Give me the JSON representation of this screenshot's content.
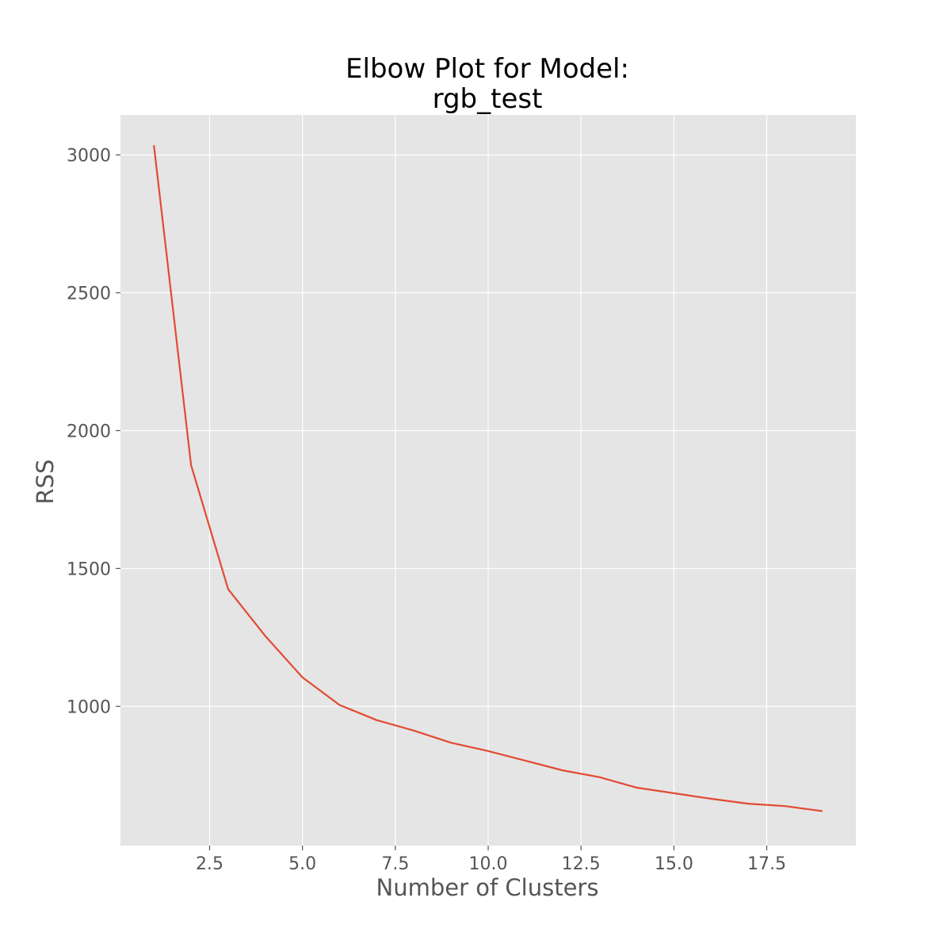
{
  "chart_data": {
    "type": "line",
    "title": "Elbow Plot for Model:\nrgb_test",
    "title_lines": [
      "Elbow Plot for Model:",
      "rgb_test"
    ],
    "xlabel": "Number of Clusters",
    "ylabel": "RSS",
    "xlim": [
      0.1,
      19.9
    ],
    "ylim": [
      495,
      3145
    ],
    "xticks": [
      2.5,
      5.0,
      7.5,
      10.0,
      12.5,
      15.0,
      17.5
    ],
    "xtick_labels": [
      "2.5",
      "5.0",
      "7.5",
      "10.0",
      "12.5",
      "15.0",
      "17.5"
    ],
    "yticks": [
      1000,
      1500,
      2000,
      2500,
      3000
    ],
    "ytick_labels": [
      "1000",
      "1500",
      "2000",
      "2500",
      "3000"
    ],
    "grid": true,
    "background_color": "#e5e5e5",
    "grid_color": "#ffffff",
    "series": [
      {
        "color": "#e24a33",
        "x": [
          1,
          2,
          3,
          4,
          5,
          6,
          7,
          8,
          9,
          10,
          11,
          12,
          13,
          14,
          15,
          16,
          17,
          18,
          19
        ],
        "y": [
          3035,
          1875,
          1425,
          1255,
          1105,
          1005,
          950,
          912,
          868,
          838,
          803,
          768,
          743,
          705,
          685,
          665,
          647,
          638,
          620
        ]
      }
    ]
  }
}
